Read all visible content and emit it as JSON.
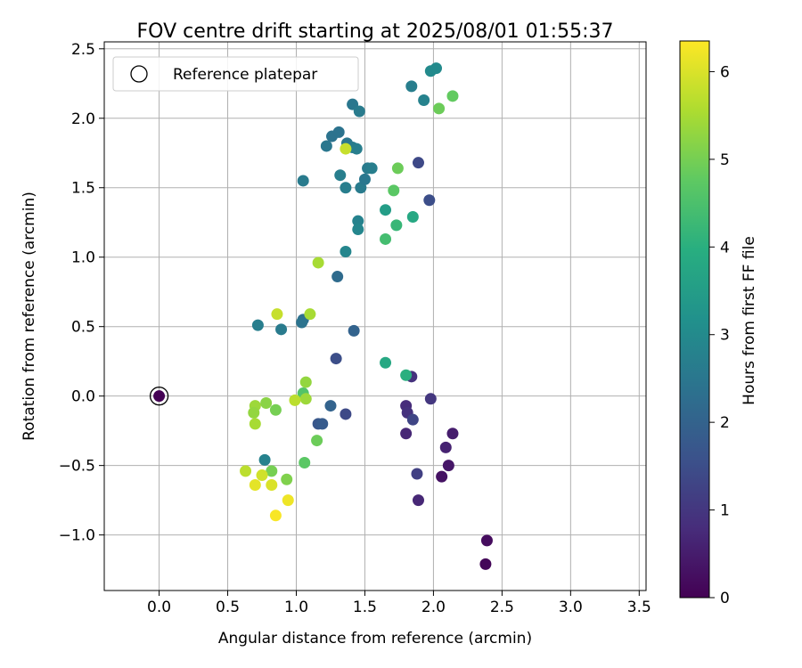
{
  "chart_data": {
    "type": "scatter",
    "title": "FOV centre drift starting at 2025/08/01 01:55:37",
    "xlabel": "Angular distance from reference (arcmin)",
    "ylabel": "Rotation from reference (arcmin)",
    "xlim": [
      -0.4,
      3.55
    ],
    "ylim": [
      -1.4,
      2.55
    ],
    "xticks": [
      0.0,
      0.5,
      1.0,
      1.5,
      2.0,
      2.5,
      3.0,
      3.5
    ],
    "xtick_labels": [
      "0.0",
      "0.5",
      "1.0",
      "1.5",
      "2.0",
      "2.5",
      "3.0",
      "3.5"
    ],
    "yticks": [
      -1.0,
      -0.5,
      0.0,
      0.5,
      1.0,
      1.5,
      2.0,
      2.5
    ],
    "ytick_labels": [
      "−1.0",
      "−0.5",
      "0.0",
      "0.5",
      "1.0",
      "1.5",
      "2.0",
      "2.5"
    ],
    "grid": true,
    "legend": {
      "placement": "top-left",
      "entries": [
        "Reference platepar"
      ]
    },
    "colorbar": {
      "label": "Hours from first FF file",
      "range": [
        0,
        6.35
      ],
      "ticks": [
        0,
        1,
        2,
        3,
        4,
        5,
        6
      ],
      "tick_labels": [
        "0",
        "1",
        "2",
        "3",
        "4",
        "5",
        "6"
      ],
      "colormap": "viridis"
    },
    "reference_point": {
      "x": 0.0,
      "y": 0.0
    },
    "points": [
      {
        "x": 0.0,
        "y": 0.0,
        "h": 0.0
      },
      {
        "x": 2.38,
        "y": -1.21,
        "h": 0.1
      },
      {
        "x": 2.39,
        "y": -1.04,
        "h": 0.2
      },
      {
        "x": 2.06,
        "y": -0.58,
        "h": 0.3
      },
      {
        "x": 2.11,
        "y": -0.5,
        "h": 0.4
      },
      {
        "x": 2.14,
        "y": -0.27,
        "h": 0.5
      },
      {
        "x": 2.09,
        "y": -0.37,
        "h": 0.6
      },
      {
        "x": 1.89,
        "y": -0.75,
        "h": 0.7
      },
      {
        "x": 1.8,
        "y": -0.27,
        "h": 0.7
      },
      {
        "x": 1.8,
        "y": -0.07,
        "h": 0.8
      },
      {
        "x": 1.81,
        "y": -0.12,
        "h": 0.9
      },
      {
        "x": 1.84,
        "y": 0.14,
        "h": 0.9
      },
      {
        "x": 1.98,
        "y": -0.02,
        "h": 1.0
      },
      {
        "x": 1.88,
        "y": -0.56,
        "h": 1.2
      },
      {
        "x": 1.85,
        "y": -0.17,
        "h": 1.3
      },
      {
        "x": 1.36,
        "y": -0.13,
        "h": 1.4
      },
      {
        "x": 1.89,
        "y": 1.68,
        "h": 1.4
      },
      {
        "x": 1.97,
        "y": 1.41,
        "h": 1.5
      },
      {
        "x": 1.29,
        "y": 0.27,
        "h": 1.5
      },
      {
        "x": 1.16,
        "y": -0.2,
        "h": 1.7
      },
      {
        "x": 1.19,
        "y": -0.2,
        "h": 1.8
      },
      {
        "x": 1.25,
        "y": -0.07,
        "h": 2.0
      },
      {
        "x": 1.42,
        "y": 0.47,
        "h": 2.0
      },
      {
        "x": 1.3,
        "y": 0.86,
        "h": 2.2
      },
      {
        "x": 1.05,
        "y": 0.55,
        "h": 2.3
      },
      {
        "x": 1.04,
        "y": 0.53,
        "h": 2.4
      },
      {
        "x": 0.89,
        "y": 0.48,
        "h": 2.6
      },
      {
        "x": 0.72,
        "y": 0.51,
        "h": 2.7
      },
      {
        "x": 0.77,
        "y": -0.46,
        "h": 2.8
      },
      {
        "x": 1.05,
        "y": 1.55,
        "h": 2.6
      },
      {
        "x": 1.22,
        "y": 1.8,
        "h": 2.5
      },
      {
        "x": 1.26,
        "y": 1.87,
        "h": 2.4
      },
      {
        "x": 1.31,
        "y": 1.9,
        "h": 2.4
      },
      {
        "x": 1.37,
        "y": 1.82,
        "h": 2.5
      },
      {
        "x": 1.41,
        "y": 1.79,
        "h": 2.6
      },
      {
        "x": 1.44,
        "y": 1.78,
        "h": 2.7
      },
      {
        "x": 1.41,
        "y": 2.1,
        "h": 2.5
      },
      {
        "x": 1.46,
        "y": 2.05,
        "h": 2.6
      },
      {
        "x": 1.32,
        "y": 1.59,
        "h": 2.7
      },
      {
        "x": 1.36,
        "y": 1.5,
        "h": 2.7
      },
      {
        "x": 1.47,
        "y": 1.5,
        "h": 2.6
      },
      {
        "x": 1.5,
        "y": 1.56,
        "h": 2.5
      },
      {
        "x": 1.52,
        "y": 1.64,
        "h": 2.6
      },
      {
        "x": 1.55,
        "y": 1.64,
        "h": 2.7
      },
      {
        "x": 1.45,
        "y": 1.26,
        "h": 2.8
      },
      {
        "x": 1.45,
        "y": 1.2,
        "h": 2.9
      },
      {
        "x": 1.36,
        "y": 1.04,
        "h": 2.9
      },
      {
        "x": 1.84,
        "y": 2.23,
        "h": 2.7
      },
      {
        "x": 1.93,
        "y": 2.13,
        "h": 2.8
      },
      {
        "x": 1.98,
        "y": 2.34,
        "h": 3.0
      },
      {
        "x": 2.02,
        "y": 2.36,
        "h": 3.0
      },
      {
        "x": 1.65,
        "y": 1.34,
        "h": 3.5
      },
      {
        "x": 1.85,
        "y": 1.29,
        "h": 3.8
      },
      {
        "x": 1.65,
        "y": 0.24,
        "h": 3.8
      },
      {
        "x": 1.8,
        "y": 0.15,
        "h": 4.0
      },
      {
        "x": 1.73,
        "y": 1.23,
        "h": 4.2
      },
      {
        "x": 1.65,
        "y": 1.13,
        "h": 4.4
      },
      {
        "x": 1.71,
        "y": 1.48,
        "h": 4.7
      },
      {
        "x": 1.74,
        "y": 1.64,
        "h": 4.9
      },
      {
        "x": 2.04,
        "y": 2.07,
        "h": 4.9
      },
      {
        "x": 2.14,
        "y": 2.16,
        "h": 4.8
      },
      {
        "x": 1.05,
        "y": 0.02,
        "h": 4.6
      },
      {
        "x": 1.06,
        "y": -0.48,
        "h": 4.7
      },
      {
        "x": 1.15,
        "y": -0.32,
        "h": 4.9
      },
      {
        "x": 0.85,
        "y": -0.1,
        "h": 5.0
      },
      {
        "x": 0.93,
        "y": -0.6,
        "h": 5.1
      },
      {
        "x": 0.82,
        "y": -0.54,
        "h": 5.0
      },
      {
        "x": 0.78,
        "y": -0.05,
        "h": 5.2
      },
      {
        "x": 0.7,
        "y": -0.07,
        "h": 5.4
      },
      {
        "x": 0.69,
        "y": -0.12,
        "h": 5.3
      },
      {
        "x": 0.7,
        "y": -0.2,
        "h": 5.5
      },
      {
        "x": 1.07,
        "y": 0.1,
        "h": 5.3
      },
      {
        "x": 1.07,
        "y": -0.02,
        "h": 5.4
      },
      {
        "x": 0.99,
        "y": -0.03,
        "h": 5.7
      },
      {
        "x": 1.1,
        "y": 0.59,
        "h": 5.5
      },
      {
        "x": 0.86,
        "y": 0.59,
        "h": 5.8
      },
      {
        "x": 1.16,
        "y": 0.96,
        "h": 5.5
      },
      {
        "x": 1.36,
        "y": 1.78,
        "h": 5.8
      },
      {
        "x": 0.63,
        "y": -0.54,
        "h": 5.7
      },
      {
        "x": 0.75,
        "y": -0.57,
        "h": 5.9
      },
      {
        "x": 0.7,
        "y": -0.64,
        "h": 6.1
      },
      {
        "x": 0.82,
        "y": -0.64,
        "h": 6.0
      },
      {
        "x": 0.94,
        "y": -0.75,
        "h": 6.2
      },
      {
        "x": 0.85,
        "y": -0.86,
        "h": 6.3
      }
    ]
  }
}
